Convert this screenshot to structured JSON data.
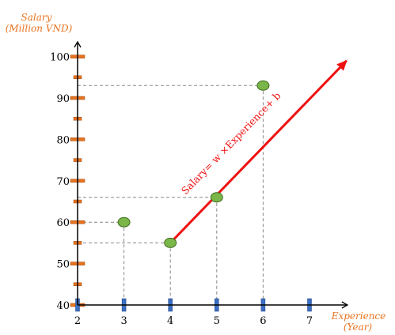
{
  "chart_data": {
    "type": "scatter",
    "y_axis_title": [
      "Salary",
      "(Million VND)"
    ],
    "x_axis_title": [
      "Experience",
      "(Year)"
    ],
    "xlim": [
      2,
      7.8
    ],
    "ylim": [
      40,
      103
    ],
    "x_ticks": [
      2,
      3,
      4,
      5,
      6,
      7
    ],
    "y_ticks": [
      40,
      50,
      60,
      70,
      80,
      90,
      100
    ],
    "y_minor_ticks": [
      45,
      55,
      65,
      75,
      85,
      95
    ],
    "points": [
      {
        "x": 3,
        "y": 60
      },
      {
        "x": 4,
        "y": 55
      },
      {
        "x": 5,
        "y": 66
      },
      {
        "x": 6,
        "y": 93
      }
    ],
    "regression_line": {
      "label": "Salary= w ×Experience+ b",
      "from": {
        "x": 4,
        "y": 55
      },
      "to": {
        "x": 7.8,
        "y": 99
      }
    },
    "colors": {
      "point_fill": "#7ab648",
      "point_stroke": "#3f6b1f",
      "regression_line": "#ee1111",
      "axis_title": "#e8731f",
      "y_tick_marker": "#e8731f",
      "x_tick_marker": "#3b6fc4",
      "guide_line": "#888888"
    },
    "grid": false
  }
}
